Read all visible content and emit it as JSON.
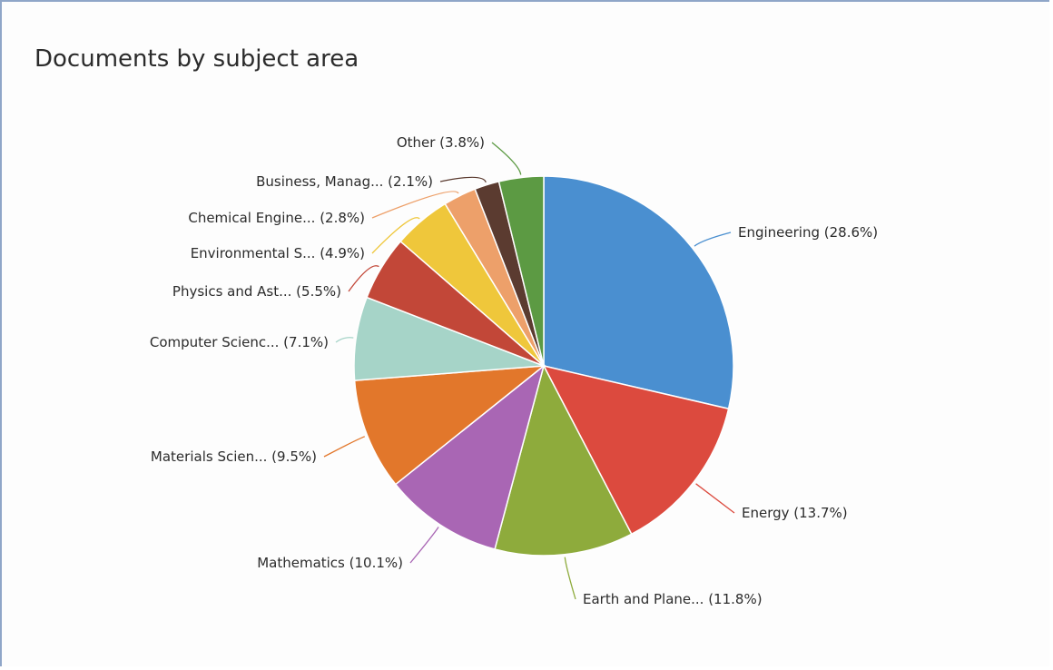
{
  "title": "Documents by subject area",
  "chart_data": {
    "type": "pie",
    "title": "Documents by subject area",
    "slices": [
      {
        "label": "Engineering (28.6%)",
        "value": 28.6,
        "color": "#4a8fd0"
      },
      {
        "label": "Energy (13.7%)",
        "value": 13.7,
        "color": "#dc4a3e"
      },
      {
        "label": "Earth and Plane... (11.8%)",
        "value": 11.8,
        "color": "#8eab3c"
      },
      {
        "label": "Mathematics (10.1%)",
        "value": 10.1,
        "color": "#a966b4"
      },
      {
        "label": "Materials Scien... (9.5%)",
        "value": 9.5,
        "color": "#e2772b"
      },
      {
        "label": "Computer Scienc... (7.1%)",
        "value": 7.1,
        "color": "#a6d4c8"
      },
      {
        "label": "Physics and Ast... (5.5%)",
        "value": 5.5,
        "color": "#c24738"
      },
      {
        "label": "Environmental S... (4.9%)",
        "value": 4.9,
        "color": "#efc73b"
      },
      {
        "label": "Chemical Engine... (2.8%)",
        "value": 2.8,
        "color": "#eda06a"
      },
      {
        "label": "Business, Manag... (2.1%)",
        "value": 2.1,
        "color": "#5b3b30"
      },
      {
        "label": "Other (3.8%)",
        "value": 3.8,
        "color": "#5c9a43"
      }
    ]
  }
}
